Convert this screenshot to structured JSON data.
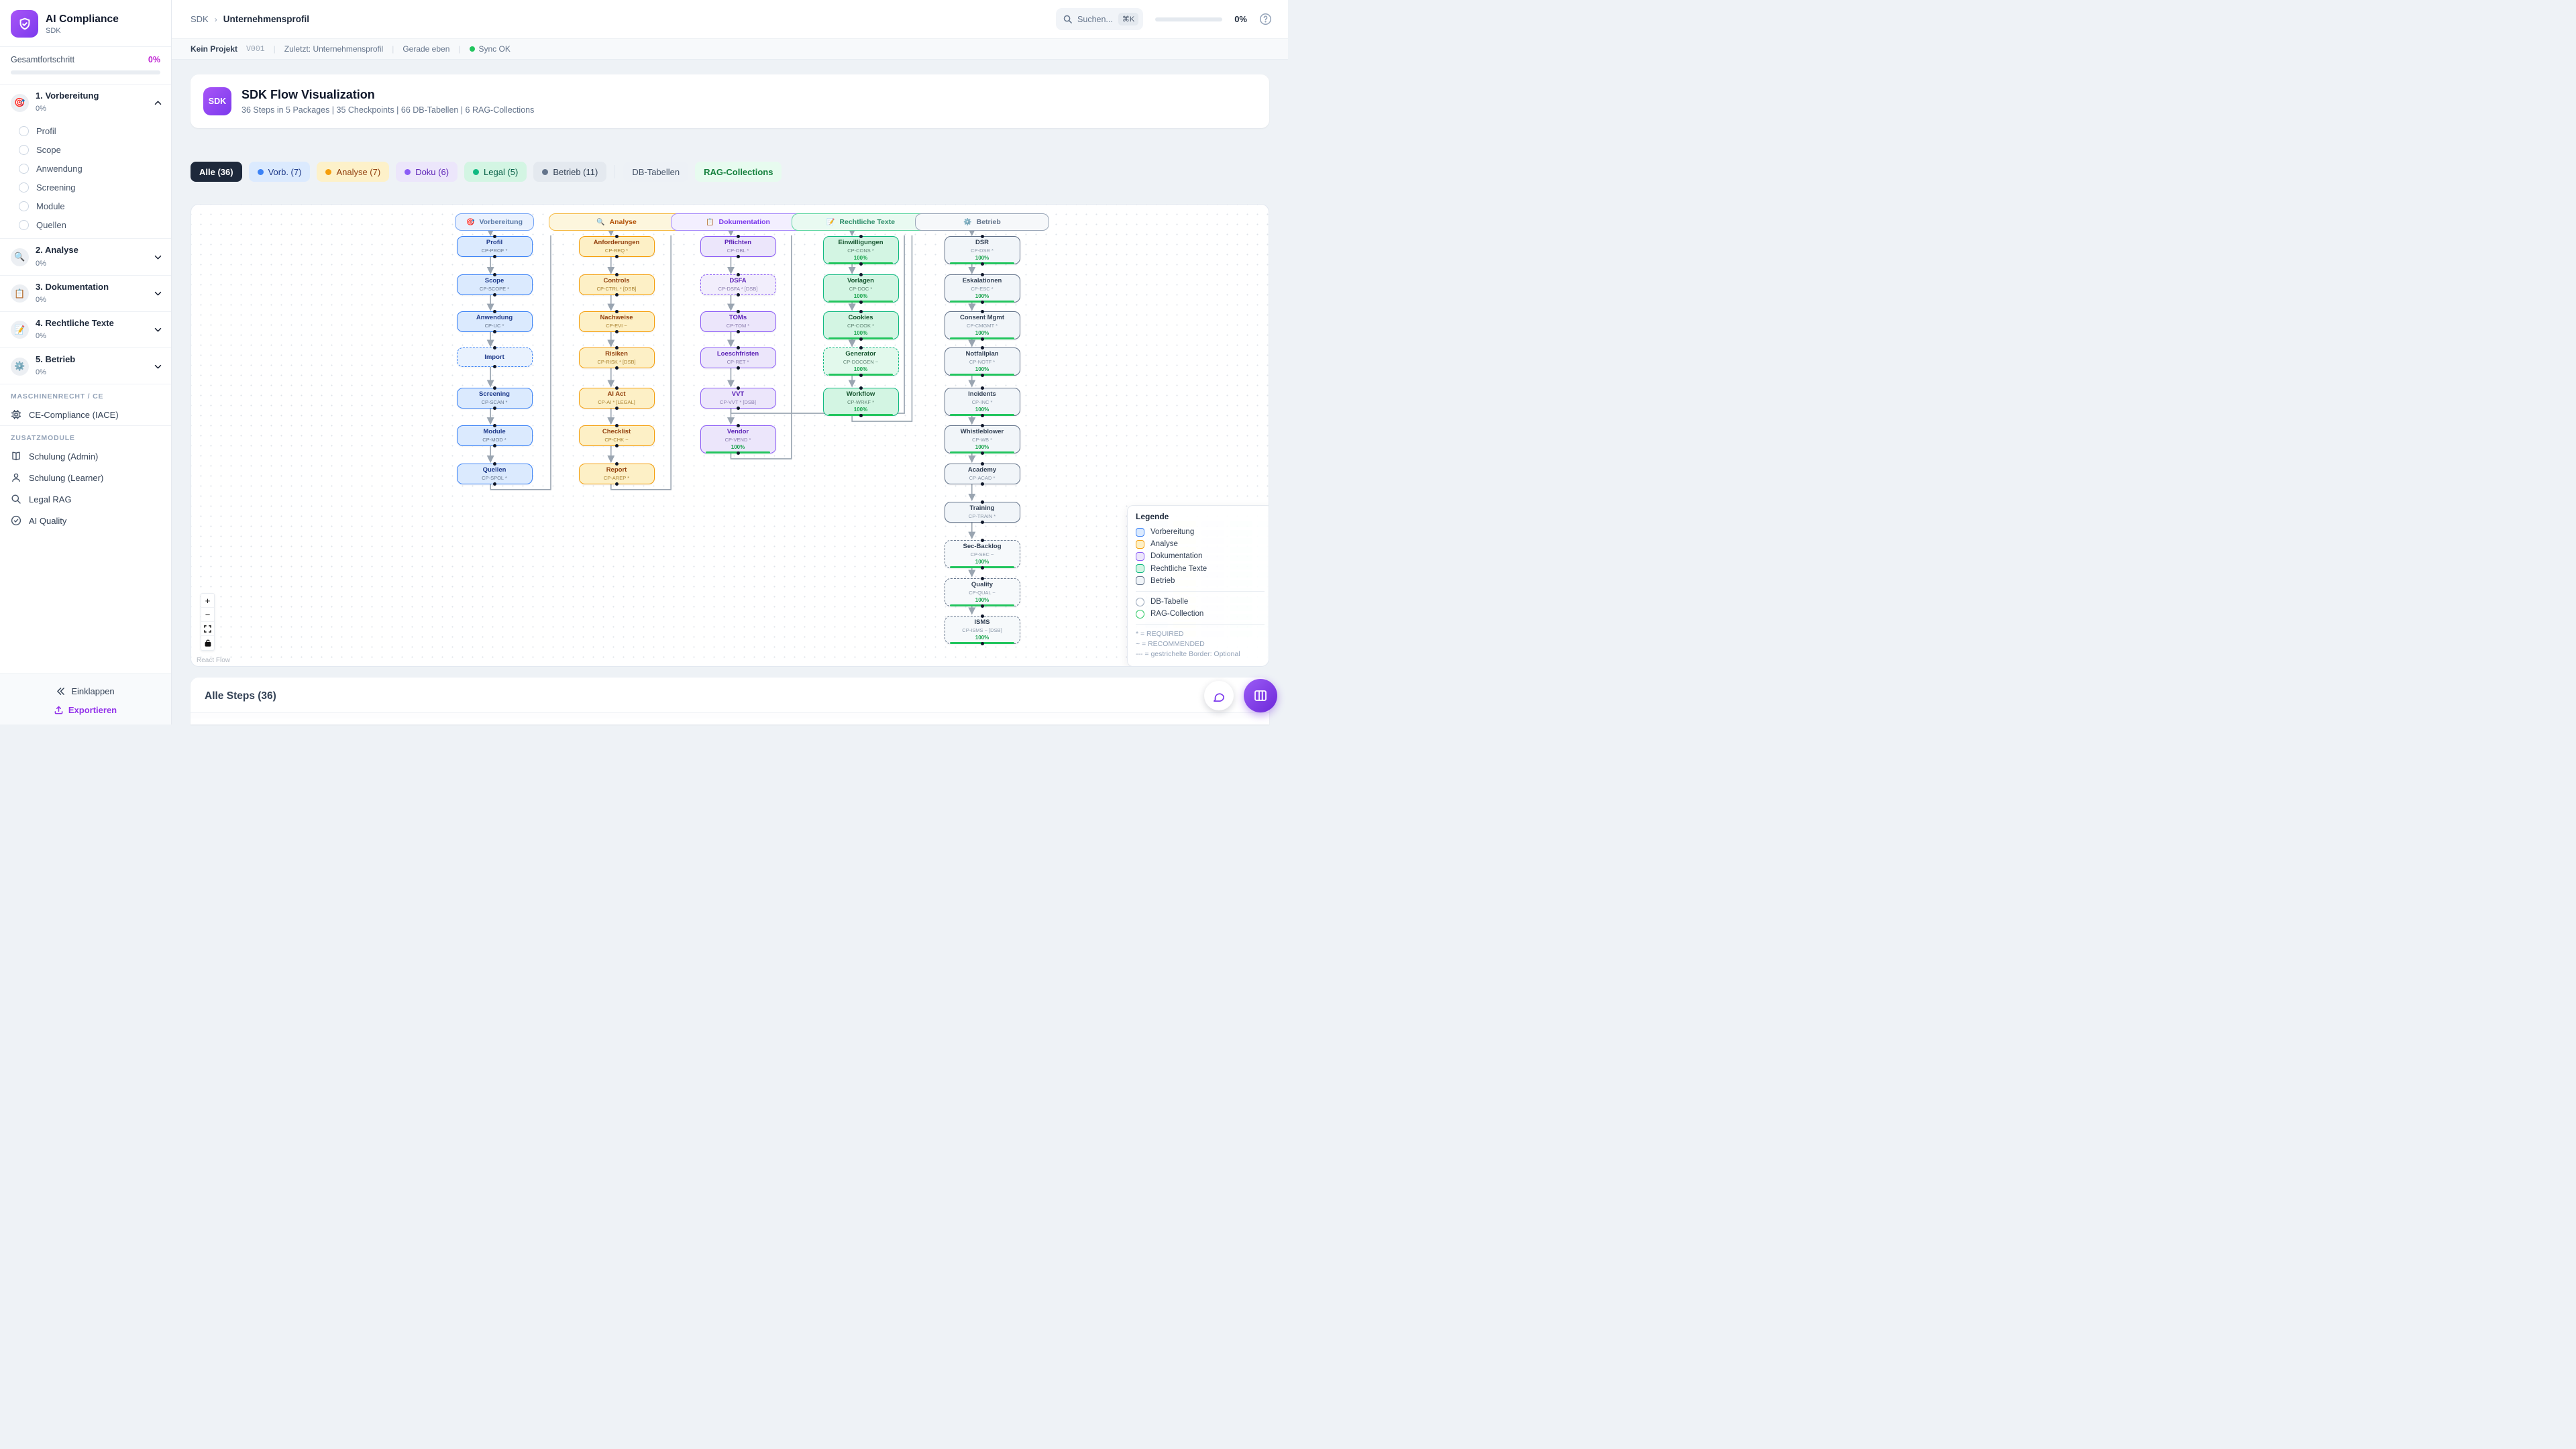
{
  "brand": {
    "title": "AI Compliance",
    "subtitle": "SDK"
  },
  "sidebar": {
    "progress_label": "Gesamtfortschritt",
    "progress_value": "0%",
    "sections": [
      {
        "title": "1. Vorbereitung",
        "emoji": "🎯",
        "pct": "0%",
        "expanded": true,
        "items": [
          "Profil",
          "Scope",
          "Anwendung",
          "Screening",
          "Module",
          "Quellen"
        ]
      },
      {
        "title": "2. Analyse",
        "emoji": "🔍",
        "pct": "0%"
      },
      {
        "title": "3. Dokumentation",
        "emoji": "📋",
        "pct": "0%"
      },
      {
        "title": "4. Rechtliche Texte",
        "emoji": "📝",
        "pct": "0%"
      },
      {
        "title": "5. Betrieb",
        "emoji": "⚙️",
        "pct": "0%"
      }
    ],
    "groups": [
      {
        "label": "MASCHINENRECHT / CE",
        "items": [
          {
            "icon": "chip",
            "label": "CE-Compliance (IACE)"
          }
        ]
      },
      {
        "label": "ZUSATZMODULE",
        "items": [
          {
            "icon": "book",
            "label": "Schulung (Admin)"
          },
          {
            "icon": "person",
            "label": "Schulung (Learner)"
          },
          {
            "icon": "search",
            "label": "Legal RAG"
          },
          {
            "icon": "check",
            "label": "AI Quality"
          }
        ]
      }
    ],
    "collapse_label": "Einklappen",
    "export_label": "Exportieren"
  },
  "header": {
    "breadcrumb": [
      "SDK",
      "Unternehmensprofil"
    ],
    "search_placeholder": "Suchen...",
    "search_shortcut": "⌘K",
    "progress_value": "0%"
  },
  "statusbar": {
    "project": "Kein Projekt",
    "version": "V001",
    "last_label": "Zuletzt:",
    "last_value": "Unternehmensprofil",
    "time": "Gerade eben",
    "sync": "Sync OK",
    "sync_color": "#22c55e"
  },
  "overview": {
    "badge": "SDK",
    "title": "SDK Flow Visualization",
    "subtitle": "36 Steps in 5 Packages | 35 Checkpoints | 66 DB-Tabellen | 6 RAG-Collections"
  },
  "filters": [
    {
      "label": "Alle (36)",
      "theme": "all"
    },
    {
      "label": "Vorb. (7)",
      "theme": "vorb",
      "dot": "#3b82f6"
    },
    {
      "label": "Analyse (7)",
      "theme": "analyse",
      "dot": "#f59e0b"
    },
    {
      "label": "Doku (6)",
      "theme": "doku",
      "dot": "#8b5cf6"
    },
    {
      "label": "Legal (5)",
      "theme": "legal",
      "dot": "#10b981"
    },
    {
      "label": "Betrieb (11)",
      "theme": "betrieb",
      "dot": "#64748b"
    },
    {
      "label": "DB-Tabellen",
      "theme": "db"
    },
    {
      "label": "RAG-Collections",
      "theme": "rag"
    }
  ],
  "flow": {
    "columns": [
      {
        "title": "Vorbereitung",
        "emoji": "🎯",
        "theme": "blue",
        "nodes": [
          {
            "title": "Profil",
            "code": "CP-PROF *"
          },
          {
            "title": "Scope",
            "code": "CP-SCOPE *"
          },
          {
            "title": "Anwendung",
            "code": "CP-UC *"
          },
          {
            "title": "Import",
            "dashed": true
          },
          {
            "title": "Screening",
            "code": "CP-SCAN *"
          },
          {
            "title": "Module",
            "code": "CP-MOD *"
          },
          {
            "title": "Quellen",
            "code": "CP-SPOL *"
          }
        ]
      },
      {
        "title": "Analyse",
        "emoji": "🔍",
        "theme": "amber",
        "nodes": [
          {
            "title": "Anforderungen",
            "code": "CP-REQ *"
          },
          {
            "title": "Controls",
            "code": "CP-CTRL * [DSB]"
          },
          {
            "title": "Nachweise",
            "code": "CP-EVI ~"
          },
          {
            "title": "Risiken",
            "code": "CP-RISK * [DSB]"
          },
          {
            "title": "AI Act",
            "code": "CP-AI * [LEGAL]"
          },
          {
            "title": "Checklist",
            "code": "CP-CHK ~"
          },
          {
            "title": "Report",
            "code": "CP-AREP *"
          }
        ]
      },
      {
        "title": "Dokumentation",
        "emoji": "📋",
        "theme": "purple",
        "nodes": [
          {
            "title": "Pflichten",
            "code": "CP-OBL *"
          },
          {
            "title": "DSFA",
            "code": "CP-DSFA * [DSB]",
            "dashed": true
          },
          {
            "title": "TOMs",
            "code": "CP-TOM *"
          },
          {
            "title": "Loeschfristen",
            "code": "CP-RET *"
          },
          {
            "title": "VVT",
            "code": "CP-VVT * [DSB]"
          },
          {
            "title": "Vendor",
            "code": "CP-VEND *",
            "progress": "100%"
          }
        ]
      },
      {
        "title": "Rechtliche Texte",
        "emoji": "📝",
        "theme": "green",
        "nodes": [
          {
            "title": "Einwilligungen",
            "code": "CP-CONS *",
            "progress": "100%"
          },
          {
            "title": "Vorlagen",
            "code": "CP-DOC *",
            "progress": "100%"
          },
          {
            "title": "Cookies",
            "code": "CP-COOK *",
            "progress": "100%"
          },
          {
            "title": "Generator",
            "code": "CP-DOCGEN ~",
            "progress": "100%",
            "dashed": true
          },
          {
            "title": "Workflow",
            "code": "CP-WRKF *",
            "progress": "100%"
          }
        ]
      },
      {
        "title": "Betrieb",
        "emoji": "⚙️",
        "theme": "slate",
        "nodes": [
          {
            "title": "DSR",
            "code": "CP-DSR *",
            "progress": "100%"
          },
          {
            "title": "Eskalationen",
            "code": "CP-ESC *",
            "progress": "100%"
          },
          {
            "title": "Consent Mgmt",
            "code": "CP-CMGMT *",
            "progress": "100%"
          },
          {
            "title": "Notfallplan",
            "code": "CP-NOTF *",
            "progress": "100%"
          },
          {
            "title": "Incidents",
            "code": "CP-INC *",
            "progress": "100%"
          },
          {
            "title": "Whistleblower",
            "code": "CP-WB *",
            "progress": "100%"
          },
          {
            "title": "Academy",
            "code": "CP-ACAD *"
          },
          {
            "title": "Training",
            "code": "CP-TRAIN *"
          },
          {
            "title": "Sec-Backlog",
            "code": "CP-SEC ~",
            "progress": "100%",
            "dashed": true
          },
          {
            "title": "Quality",
            "code": "CP-QUAL ~",
            "progress": "100%",
            "dashed": true
          },
          {
            "title": "ISMS",
            "code": "CP-ISMS ~ [DSB]",
            "progress": "100%",
            "dashed": true
          }
        ]
      }
    ],
    "legend": {
      "title": "Legende",
      "categories": [
        {
          "label": "Vorbereitung",
          "theme": "blue",
          "border": "#3b82f6",
          "fill": "#dbeafe"
        },
        {
          "label": "Analyse",
          "theme": "amber",
          "border": "#f59e0b",
          "fill": "#fdf0c6"
        },
        {
          "label": "Dokumentation",
          "theme": "purple",
          "border": "#8b5cf6",
          "fill": "#ece6fb"
        },
        {
          "label": "Rechtliche Texte",
          "theme": "green",
          "border": "#10b981",
          "fill": "#d3f5e3"
        },
        {
          "label": "Betrieb",
          "theme": "slate",
          "border": "#64748b",
          "fill": "#f1f5f9"
        }
      ],
      "shapes": [
        {
          "label": "DB-Tabelle",
          "color": "#94a3b8"
        },
        {
          "label": "RAG-Collection",
          "color": "#22c55e"
        }
      ],
      "notes": [
        "* = REQUIRED",
        "~ = RECOMMENDED",
        "--- = gestrichelte Border: Optional"
      ]
    },
    "attribution": "React Flow",
    "controls": [
      "zoom-in",
      "zoom-out",
      "fit-view",
      "lock"
    ]
  },
  "steps_section": {
    "heading": "Alle Steps (36)"
  }
}
